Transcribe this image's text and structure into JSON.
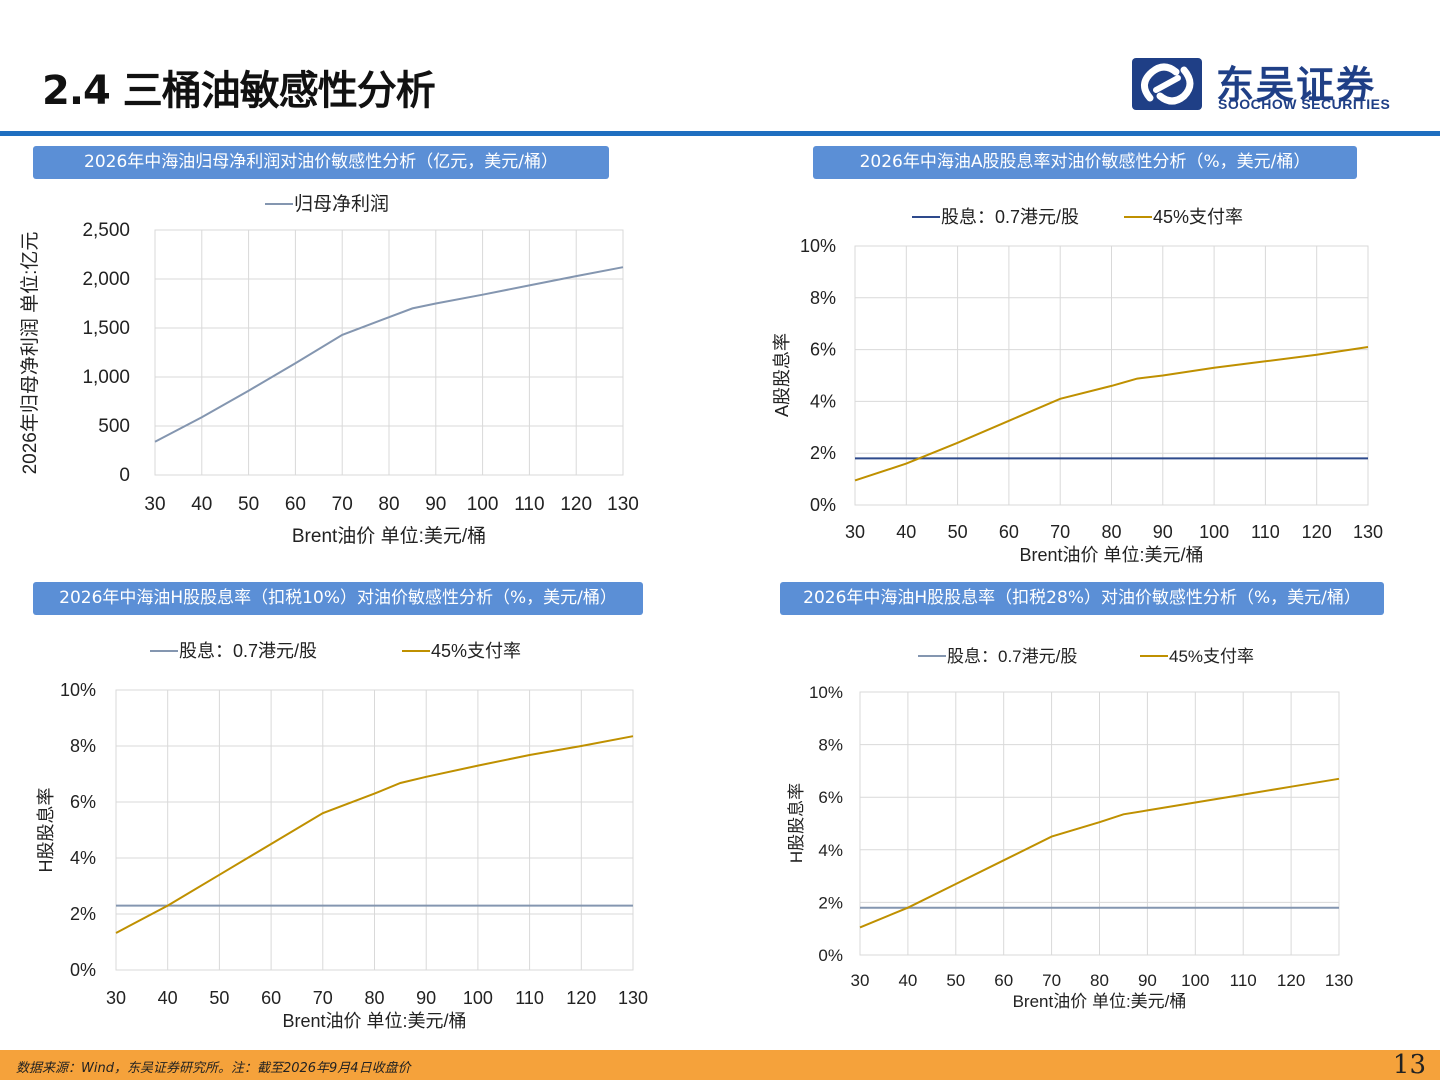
{
  "header": {
    "title": "2.4 三桶油敏感性分析",
    "logo_cn": "东吴证券",
    "logo_en": "SOOCHOW SECURITIES"
  },
  "colors": {
    "rule": "#1f6fc0",
    "header_bg": "#5b8fd6",
    "footer_bg": "#f5a23b",
    "gray_line": "#8496b0",
    "navy_line": "#2e4a8c",
    "gold_line": "#bf9000",
    "grid": "#d9d9d9"
  },
  "charts": [
    {
      "title": "2026年中海油归母净利润对油价敏感性分析（亿元，美元/桶）"
    },
    {
      "title": "2026年中海油A股股息率对油价敏感性分析（%，美元/桶）"
    },
    {
      "title": "2026年中海油H股股息率（扣税10%）对油价敏感性分析（%，美元/桶）"
    },
    {
      "title": "2026年中海油H股股息率（扣税28%）对油价敏感性分析（%，美元/桶）"
    }
  ],
  "chart_data": [
    {
      "type": "line",
      "xlabel": "Brent油价  单位:美元/桶",
      "ylabel": "2026年归母净利润  单位:亿元",
      "xlim": [
        30,
        130
      ],
      "ylim": [
        0,
        2500
      ],
      "xticks": [
        "30",
        "40",
        "50",
        "60",
        "70",
        "80",
        "90",
        "100",
        "110",
        "120",
        "130"
      ],
      "yticks": [
        "0",
        "500",
        "1,000",
        "1,500",
        "2,000",
        "2,500"
      ],
      "legend_position": "top",
      "grid": true,
      "series": [
        {
          "name": "归母净利润",
          "color": "#8496b0",
          "x": [
            30,
            40,
            50,
            60,
            70,
            80,
            85,
            90,
            100,
            110,
            120,
            130
          ],
          "y": [
            340,
            590,
            860,
            1140,
            1430,
            1610,
            1700,
            1750,
            1840,
            1935,
            2030,
            2120
          ]
        }
      ]
    },
    {
      "type": "line",
      "xlabel": "Brent油价  单位:美元/桶",
      "ylabel": "A股股息率",
      "xlim": [
        30,
        130
      ],
      "ylim": [
        0,
        10
      ],
      "xticks": [
        "30",
        "40",
        "50",
        "60",
        "70",
        "80",
        "90",
        "100",
        "110",
        "120",
        "130"
      ],
      "yticks": [
        "0%",
        "2%",
        "4%",
        "6%",
        "8%",
        "10%"
      ],
      "legend_position": "top",
      "grid": true,
      "series": [
        {
          "name": "股息：0.7港元/股",
          "color": "#2e4a8c",
          "x": [
            30,
            130
          ],
          "y": [
            1.8,
            1.8
          ]
        },
        {
          "name": "45%支付率",
          "color": "#bf9000",
          "x": [
            30,
            40,
            50,
            60,
            70,
            80,
            85,
            90,
            100,
            110,
            120,
            130
          ],
          "y": [
            0.95,
            1.6,
            2.4,
            3.25,
            4.1,
            4.6,
            4.88,
            5.0,
            5.3,
            5.55,
            5.8,
            6.1
          ]
        }
      ]
    },
    {
      "type": "line",
      "xlabel": "Brent油价  单位:美元/桶",
      "ylabel": "H股股息率",
      "xlim": [
        30,
        130
      ],
      "ylim": [
        0,
        10
      ],
      "xticks": [
        "30",
        "40",
        "50",
        "60",
        "70",
        "80",
        "90",
        "100",
        "110",
        "120",
        "130"
      ],
      "yticks": [
        "0%",
        "2%",
        "4%",
        "6%",
        "8%",
        "10%"
      ],
      "legend_position": "top",
      "grid": true,
      "series": [
        {
          "name": "股息：0.7港元/股",
          "color": "#8496b0",
          "x": [
            30,
            130
          ],
          "y": [
            2.3,
            2.3
          ]
        },
        {
          "name": "45%支付率",
          "color": "#bf9000",
          "x": [
            30,
            40,
            50,
            60,
            70,
            80,
            85,
            90,
            100,
            110,
            120,
            130
          ],
          "y": [
            1.32,
            2.3,
            3.4,
            4.5,
            5.6,
            6.3,
            6.68,
            6.9,
            7.3,
            7.68,
            8.0,
            8.35
          ]
        }
      ]
    },
    {
      "type": "line",
      "xlabel": "Brent油价  单位:美元/桶",
      "ylabel": "H股股息率",
      "xlim": [
        30,
        130
      ],
      "ylim": [
        0,
        10
      ],
      "xticks": [
        "30",
        "40",
        "50",
        "60",
        "70",
        "80",
        "90",
        "100",
        "110",
        "120",
        "130"
      ],
      "yticks": [
        "0%",
        "2%",
        "4%",
        "6%",
        "8%",
        "10%"
      ],
      "legend_position": "top",
      "grid": true,
      "series": [
        {
          "name": "股息：0.7港元/股",
          "color": "#8496b0",
          "x": [
            30,
            130
          ],
          "y": [
            1.8,
            1.8
          ]
        },
        {
          "name": "45%支付率",
          "color": "#bf9000",
          "x": [
            30,
            40,
            50,
            60,
            70,
            80,
            85,
            90,
            100,
            110,
            120,
            130
          ],
          "y": [
            1.05,
            1.8,
            2.7,
            3.6,
            4.5,
            5.05,
            5.35,
            5.5,
            5.8,
            6.1,
            6.4,
            6.7
          ]
        }
      ]
    }
  ],
  "footer": {
    "note": "数据来源：Wind，东吴证券研究所。注：截至2026年9月4日收盘价",
    "page": "13"
  }
}
